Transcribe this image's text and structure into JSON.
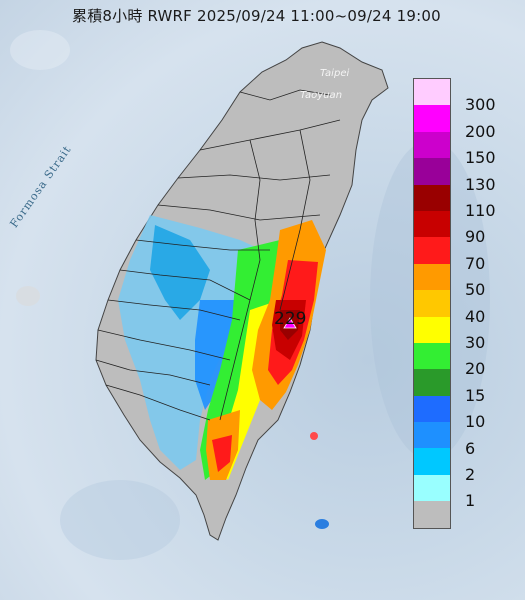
{
  "title": "累積8小時 RWRF 2025/09/24 11:00~09/24 19:00",
  "places": [
    "Taipei",
    "Taoyuan"
  ],
  "strait_label": "Formosa Strait",
  "max_value": "229",
  "legend": {
    "labels": [
      "300",
      "200",
      "150",
      "130",
      "110",
      "90",
      "70",
      "50",
      "40",
      "30",
      "20",
      "15",
      "10",
      "6",
      "2",
      "1"
    ],
    "colors": [
      "#ffccff",
      "#ff00ff",
      "#cc00cc",
      "#990099",
      "#990000",
      "#c80000",
      "#ff1a1a",
      "#ff9a00",
      "#ffc800",
      "#ffff00",
      "#33ee33",
      "#2a9a2a",
      "#1e6cff",
      "#1e90ff",
      "#00c8ff",
      "#99ffff",
      "#bdbdbd"
    ]
  }
}
